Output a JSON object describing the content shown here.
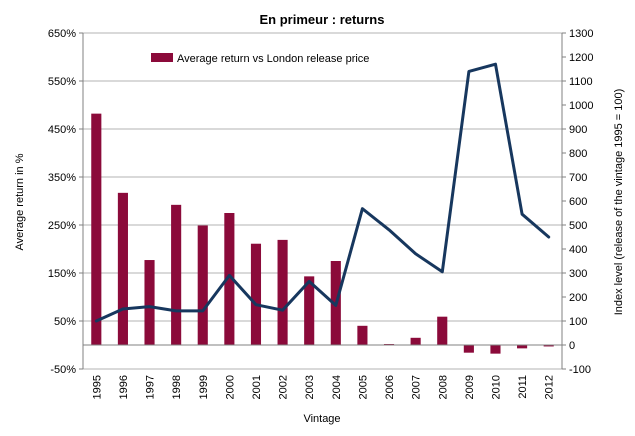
{
  "chart_data": {
    "type": "bar",
    "title": "En primeur : returns",
    "xlabel": "Vintage",
    "ylabel": "Average return in %",
    "y2label": "Index level (release of the vintage 1995 = 100)",
    "categories": [
      "1995",
      "1996",
      "1997",
      "1998",
      "1999",
      "2000",
      "2001",
      "2002",
      "2003",
      "2004",
      "2005",
      "2006",
      "2007",
      "2008",
      "2009",
      "2010",
      "2011",
      "2012"
    ],
    "ylim": [
      -50,
      650
    ],
    "yticks": [
      -50,
      50,
      150,
      250,
      350,
      450,
      550,
      650
    ],
    "ytick_labels": [
      "-50%",
      "50%",
      "150%",
      "250%",
      "350%",
      "450%",
      "550%",
      "650%"
    ],
    "y2lim": [
      -100,
      1300
    ],
    "y2ticks": [
      -100,
      0,
      100,
      200,
      300,
      400,
      500,
      600,
      700,
      800,
      900,
      1000,
      1100,
      1200,
      1300
    ],
    "legend_position": "top-left",
    "grid": "horizontal",
    "series": [
      {
        "name": "Average return vs London release price",
        "kind": "bar",
        "axis": "left",
        "color": "#8B0A3A",
        "values": [
          482,
          317,
          177,
          292,
          249,
          275,
          211,
          219,
          143,
          175,
          40,
          2,
          15,
          59,
          -16,
          -18,
          -7,
          -3
        ]
      },
      {
        "kind": "line",
        "axis": "right",
        "color": "#17375E",
        "values": [
          100,
          150,
          160,
          142,
          142,
          290,
          168,
          145,
          265,
          165,
          568,
          480,
          380,
          305,
          1140,
          1170,
          545,
          450
        ]
      }
    ]
  }
}
